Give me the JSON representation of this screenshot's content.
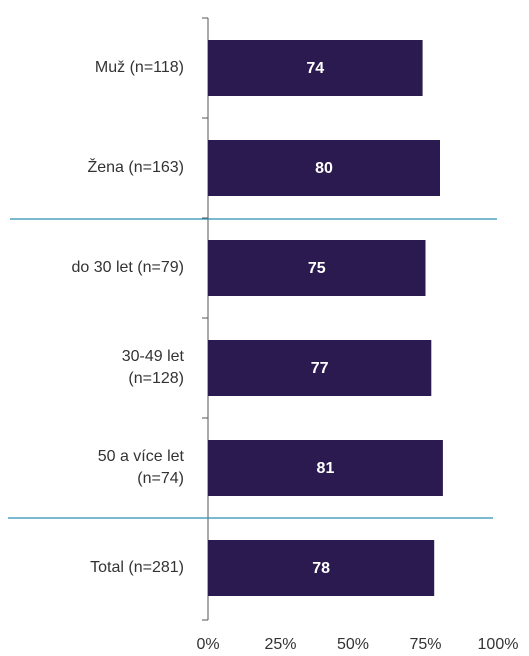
{
  "chart_data": {
    "type": "bar",
    "orientation": "horizontal",
    "categories": [
      "Muž (n=118)",
      "Žena (n=163)",
      "do 30 let (n=79)",
      "30-49 let\n(n=128)",
      "50 a více let\n(n=74)",
      "Total (n=281)"
    ],
    "values": [
      74,
      80,
      75,
      77,
      81,
      78
    ],
    "color": "#2b1a4f",
    "xlim": [
      0,
      100
    ],
    "xticks": [
      {
        "value": 0,
        "label": "0%"
      },
      {
        "value": 25,
        "label": "25%"
      },
      {
        "value": 50,
        "label": "50%"
      },
      {
        "value": 75,
        "label": "75%"
      },
      {
        "value": 100,
        "label": "100%"
      }
    ],
    "grid": false
  }
}
